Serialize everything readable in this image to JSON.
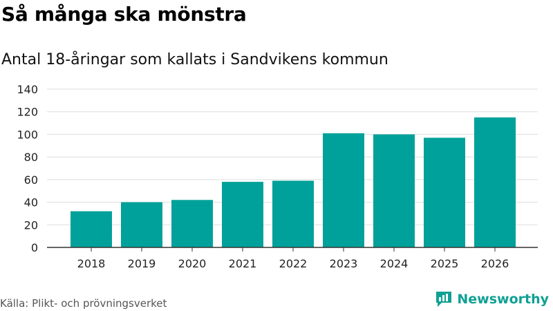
{
  "header": {
    "title": "Så många ska mönstra",
    "subtitle": "Antal 18-åringar som kallats i Sandvikens kommun"
  },
  "footer": {
    "source": "Källa: Plikt- och prövningsverket",
    "brand": "Newsworthy"
  },
  "colors": {
    "bar": "#00a19a",
    "grid": "#dddddd",
    "axis": "#333333",
    "brand": "#0fa193"
  },
  "icons": {
    "brand_logo": "newsworthy-logo-icon"
  },
  "chart_data": {
    "type": "bar",
    "title": "Så många ska mönstra",
    "subtitle": "Antal 18-åringar som kallats i Sandvikens kommun",
    "categories": [
      "2018",
      "2019",
      "2020",
      "2021",
      "2022",
      "2023",
      "2024",
      "2025",
      "2026"
    ],
    "values": [
      32,
      40,
      42,
      58,
      59,
      101,
      100,
      97,
      115
    ],
    "yticks": [
      0,
      20,
      40,
      60,
      80,
      100,
      120,
      140
    ],
    "ylim": [
      0,
      140
    ],
    "xlabel": "",
    "ylabel": "",
    "grid": true
  }
}
